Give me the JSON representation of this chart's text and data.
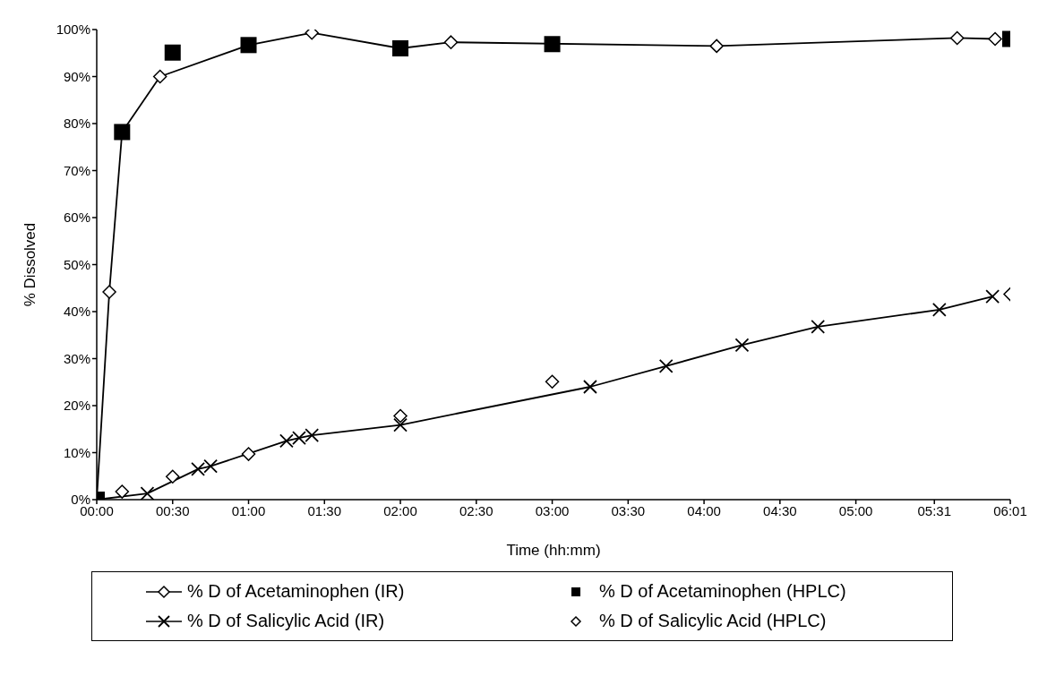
{
  "chart_data": {
    "type": "line",
    "xlabel": "Time (hh:mm)",
    "ylabel": "% Dissolved",
    "xlim": [
      0,
      6.017
    ],
    "ylim": [
      0,
      100
    ],
    "xticks": [
      {
        "value": 0,
        "label": "00:00"
      },
      {
        "value": 0.5,
        "label": "00:30"
      },
      {
        "value": 1,
        "label": "01:00"
      },
      {
        "value": 1.5,
        "label": "01:30"
      },
      {
        "value": 2,
        "label": "02:00"
      },
      {
        "value": 2.5,
        "label": "02:30"
      },
      {
        "value": 3,
        "label": "03:00"
      },
      {
        "value": 3.5,
        "label": "03:30"
      },
      {
        "value": 4,
        "label": "04:00"
      },
      {
        "value": 4.5,
        "label": "04:30"
      },
      {
        "value": 5,
        "label": "05:00"
      },
      {
        "value": 5.517,
        "label": "05:31"
      },
      {
        "value": 6.017,
        "label": "06:01"
      }
    ],
    "yticks": [
      {
        "value": 0,
        "label": "0%"
      },
      {
        "value": 10,
        "label": "10%"
      },
      {
        "value": 20,
        "label": "20%"
      },
      {
        "value": 30,
        "label": "30%"
      },
      {
        "value": 40,
        "label": "40%"
      },
      {
        "value": 50,
        "label": "50%"
      },
      {
        "value": 60,
        "label": "60%"
      },
      {
        "value": 70,
        "label": "70%"
      },
      {
        "value": 80,
        "label": "80%"
      },
      {
        "value": 90,
        "label": "90%"
      },
      {
        "value": 100,
        "label": "100%"
      }
    ],
    "grid": false,
    "legend": "bottom",
    "series": [
      {
        "name": "% D of Acetaminophen (IR)",
        "type": "line",
        "marker": "diamond",
        "color": "#000000",
        "x": [
          0,
          0.083,
          0.167,
          0.417,
          1,
          1.417,
          2,
          2.333,
          4.083,
          5.667,
          5.917
        ],
        "values": [
          0,
          44.2,
          78.2,
          90,
          96.7,
          99.3,
          96,
          97.3,
          96.5,
          98.2,
          98
        ]
      },
      {
        "name": "% D of Acetaminophen (HPLC)",
        "type": "scatter",
        "marker": "square",
        "color": "#000000",
        "x": [
          0,
          0.167,
          0.5,
          1,
          2,
          3,
          6.017
        ],
        "values": [
          0,
          78.2,
          95.1,
          96.7,
          96,
          96.9,
          98
        ]
      },
      {
        "name": "% D of Salicylic Acid (IR)",
        "type": "line",
        "marker": "cross",
        "color": "#000000",
        "x": [
          0,
          0.333,
          0.667,
          0.75,
          1.25,
          1.333,
          1.417,
          2,
          3.25,
          3.75,
          4.25,
          4.75,
          5.55,
          5.9
        ],
        "values": [
          0,
          1.3,
          6.5,
          7.1,
          12.5,
          13.1,
          13.7,
          15.9,
          24,
          28.4,
          32.9,
          36.8,
          40.4,
          43.2
        ]
      },
      {
        "name": "% D of Salicylic Acid (HPLC)",
        "type": "scatter",
        "marker": "diamond",
        "color": "#000000",
        "x": [
          0.167,
          0.5,
          1,
          2,
          3,
          6.017
        ],
        "values": [
          1.7,
          4.9,
          9.7,
          17.8,
          25.1,
          43.7
        ]
      }
    ]
  }
}
